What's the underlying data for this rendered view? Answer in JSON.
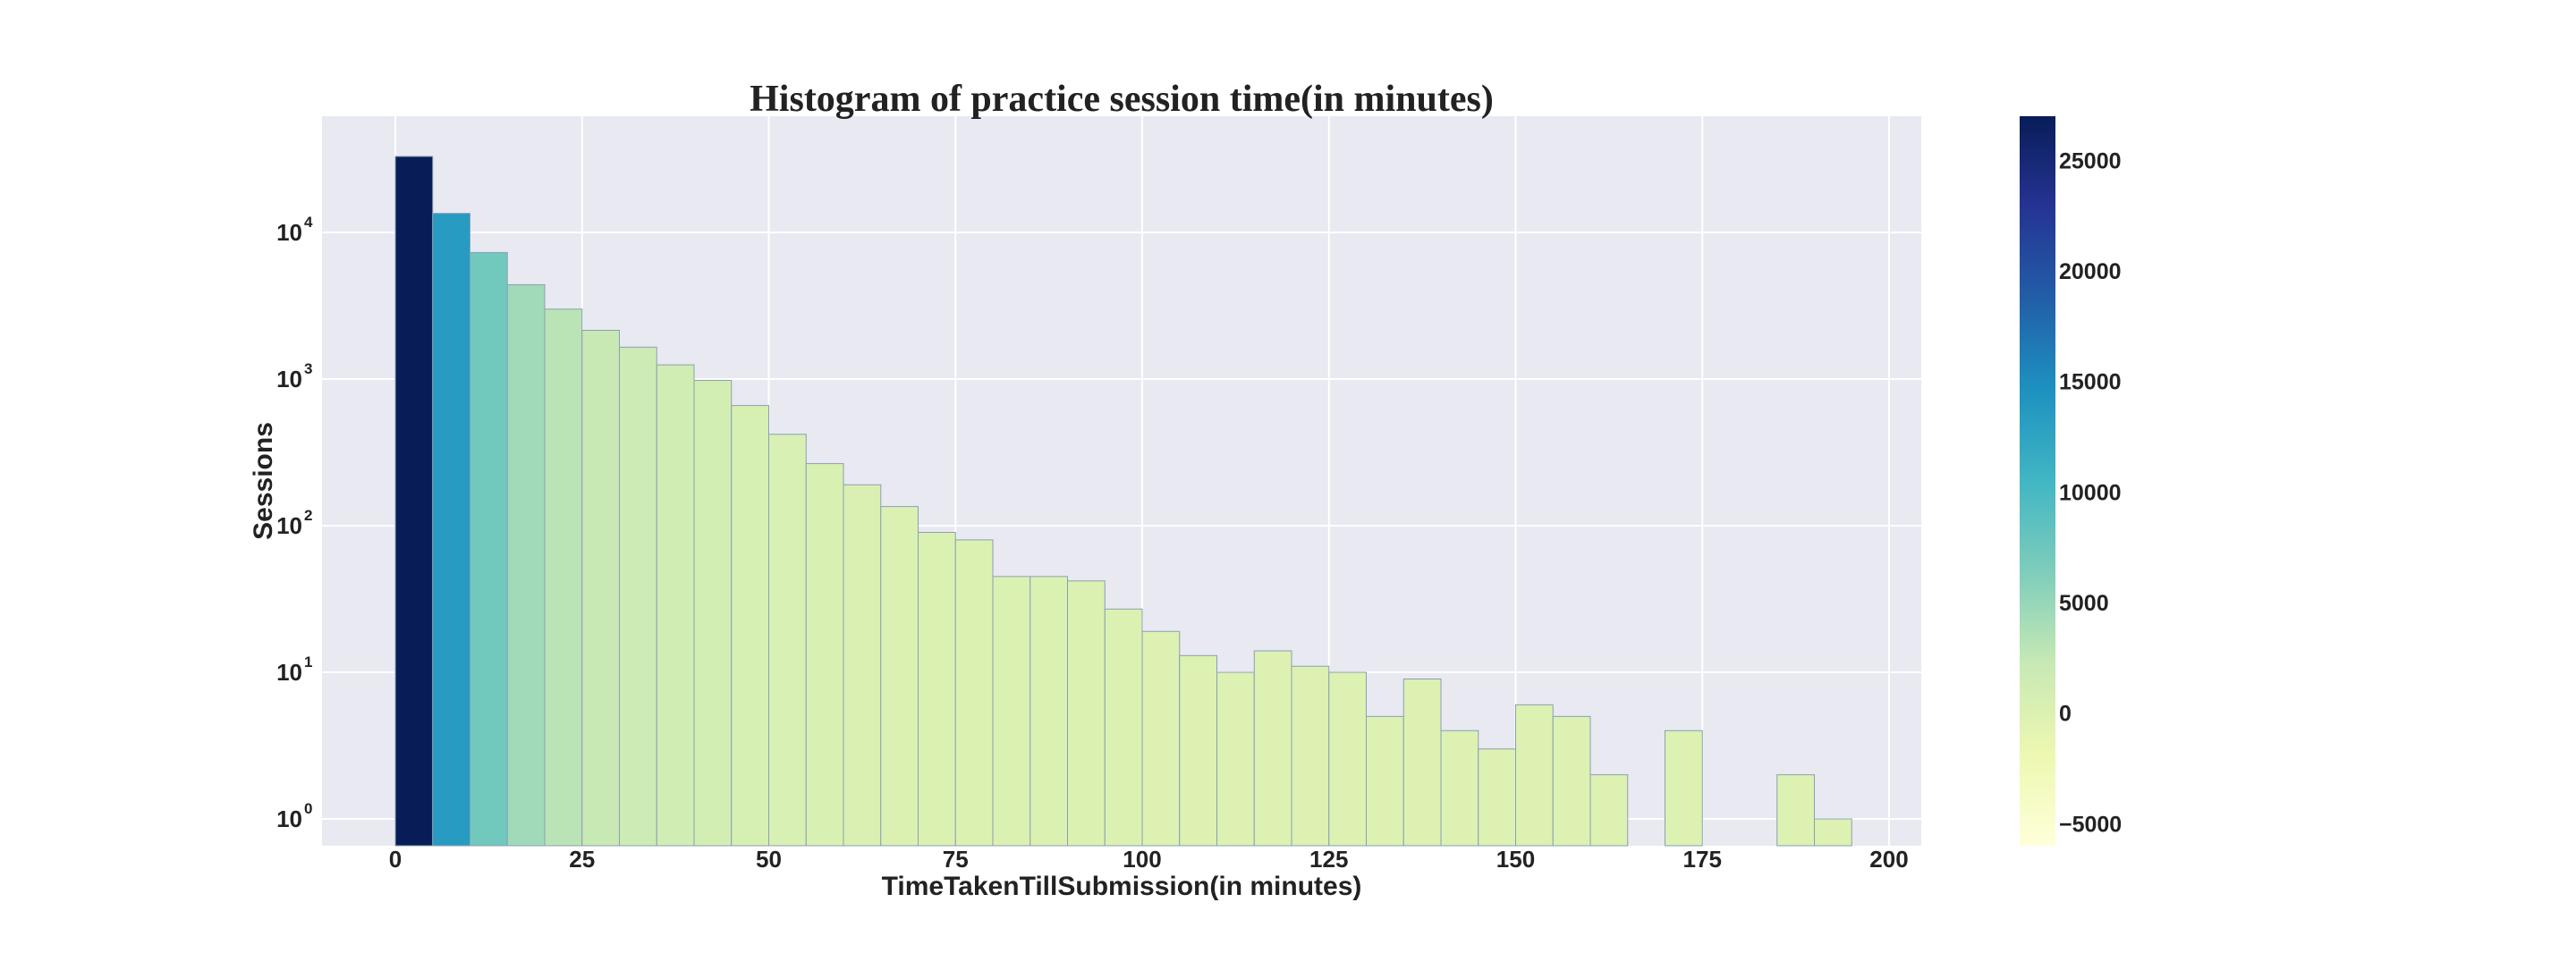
{
  "chart_data": {
    "type": "bar",
    "title": "Histogram of practice session time(in minutes)",
    "xlabel": "TimeTakenTillSubmission(in minutes)",
    "ylabel": "Sessions",
    "yscale": "log",
    "ylim": [
      0.6,
      45000
    ],
    "xlim": [
      -10,
      205
    ],
    "grid": true,
    "bin_width": 5,
    "bin_starts": [
      0,
      5,
      10,
      15,
      20,
      25,
      30,
      35,
      40,
      45,
      50,
      55,
      60,
      65,
      70,
      75,
      80,
      85,
      90,
      95,
      100,
      105,
      110,
      115,
      120,
      125,
      130,
      135,
      140,
      145,
      150,
      155,
      160,
      165,
      170,
      175,
      180,
      185,
      190,
      195
    ],
    "values": [
      33000,
      13500,
      7300,
      4400,
      3000,
      2150,
      1650,
      1250,
      980,
      660,
      420,
      265,
      190,
      135,
      90,
      80,
      45,
      45,
      42,
      27,
      19,
      13,
      10,
      14,
      11,
      10,
      5,
      9,
      4,
      3,
      6,
      5,
      2,
      0,
      4,
      0,
      0,
      2,
      1,
      0
    ],
    "x_ticks": [
      0,
      25,
      50,
      75,
      100,
      125,
      150,
      175,
      200
    ],
    "x_tick_labels": [
      "0",
      "25",
      "50",
      "75",
      "100",
      "125",
      "150",
      "175",
      "200"
    ],
    "y_ticks": [
      1,
      10,
      100,
      1000,
      10000
    ],
    "y_tick_labels": [
      {
        "base": "10",
        "exp": "0"
      },
      {
        "base": "10",
        "exp": "1"
      },
      {
        "base": "10",
        "exp": "2"
      },
      {
        "base": "10",
        "exp": "3"
      },
      {
        "base": "10",
        "exp": "4"
      }
    ],
    "colorbar": {
      "colormap": "YlGnBu",
      "range": [
        -6000,
        27000
      ],
      "ticks": [
        -5000,
        0,
        5000,
        10000,
        15000,
        20000,
        25000
      ],
      "tick_labels": [
        "−5000",
        "0",
        "5000",
        "10000",
        "15000",
        "20000",
        "25000"
      ]
    },
    "colors": {
      "plot_background": "#e9e9f2",
      "grid": "#ffffff",
      "bar_edge": "#8aa0b4",
      "text": "#222222"
    }
  }
}
